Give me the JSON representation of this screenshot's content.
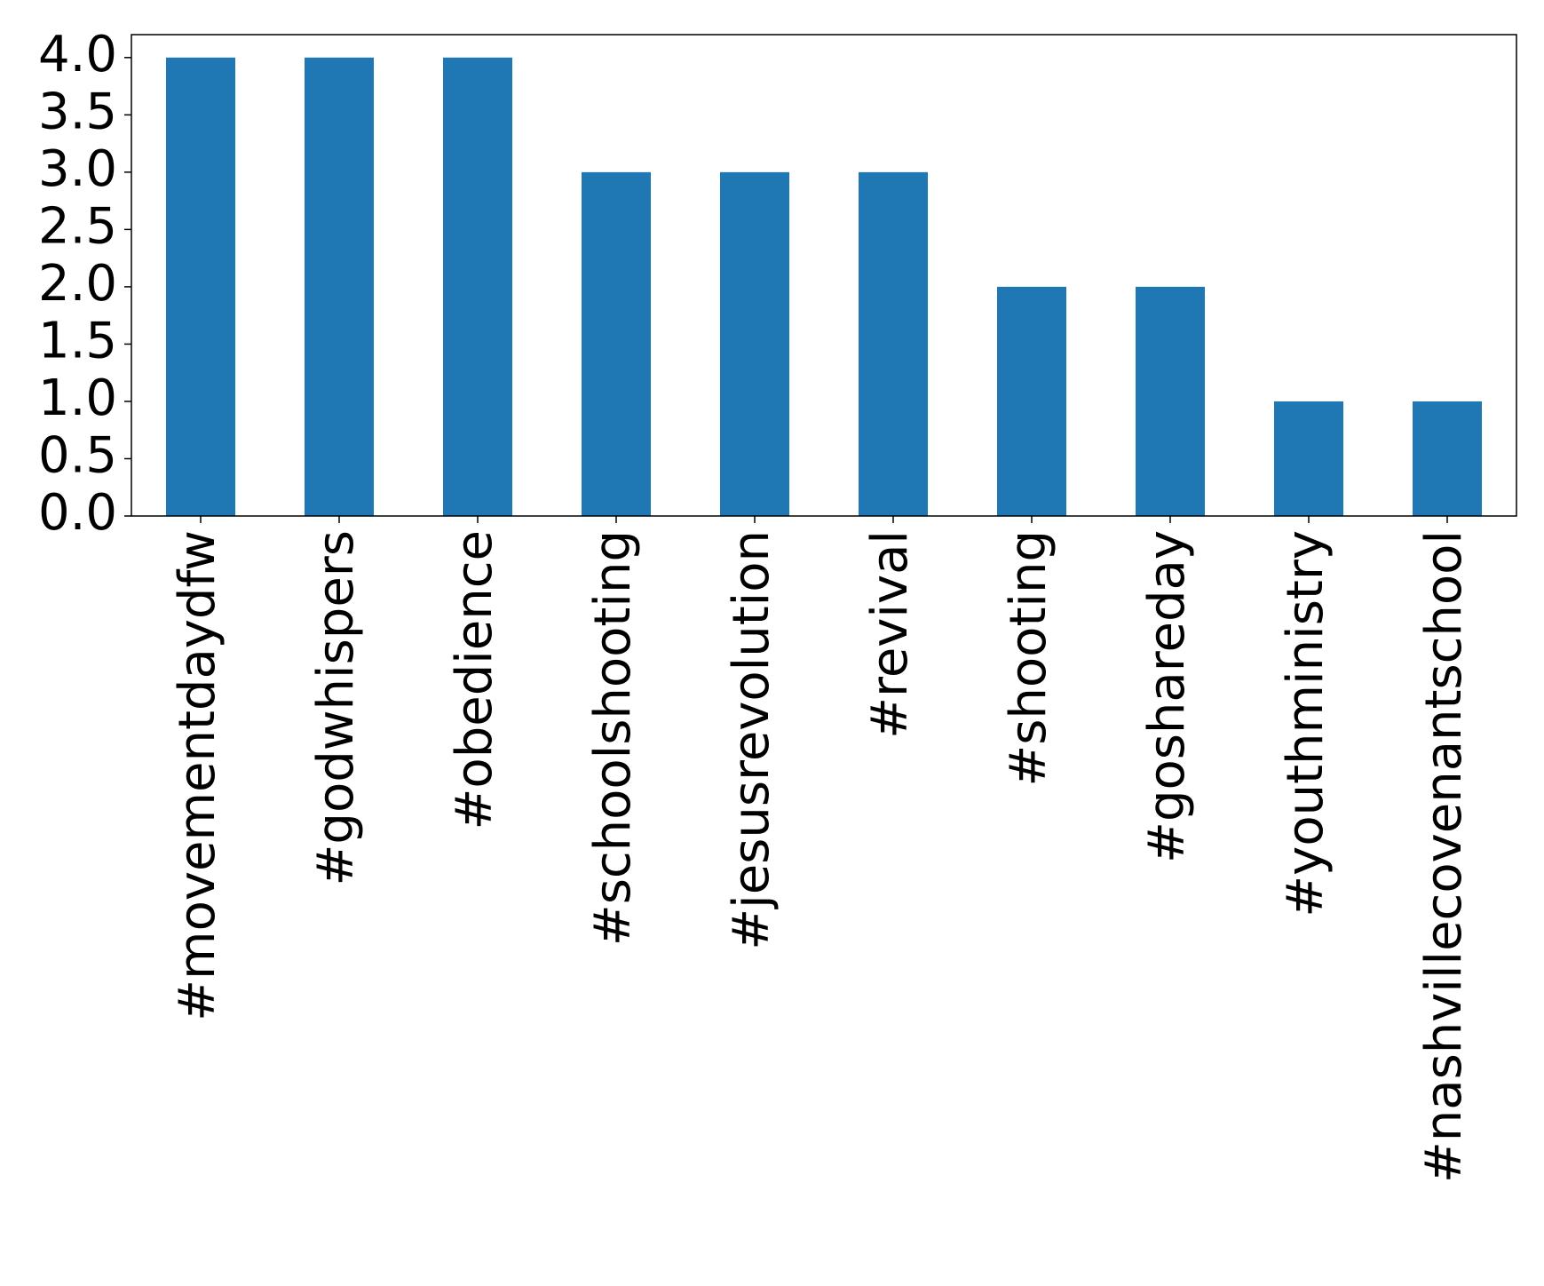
{
  "chart_data": {
    "type": "bar",
    "categories": [
      "#movementdaydfw",
      "#godwhispers",
      "#obedience",
      "#schoolshooting",
      "#jesusrevolution",
      "#revival",
      "#shooting",
      "#goshareday",
      "#youthministry",
      "#nashvillecovenantschool"
    ],
    "values": [
      4,
      4,
      4,
      3,
      3,
      3,
      2,
      2,
      1,
      1
    ],
    "color": "#1f77b4",
    "ylim": [
      0,
      4.2
    ],
    "yticks": [
      {
        "value": 0,
        "label": "0.0"
      },
      0.5,
      {
        "value": 1,
        "label": "1.0"
      },
      1.5,
      {
        "value": 2,
        "label": "2.0"
      },
      2.5,
      {
        "value": 3,
        "label": "3.0"
      },
      3.5,
      {
        "value": 4,
        "label": "4.0"
      }
    ],
    "grid": false
  }
}
